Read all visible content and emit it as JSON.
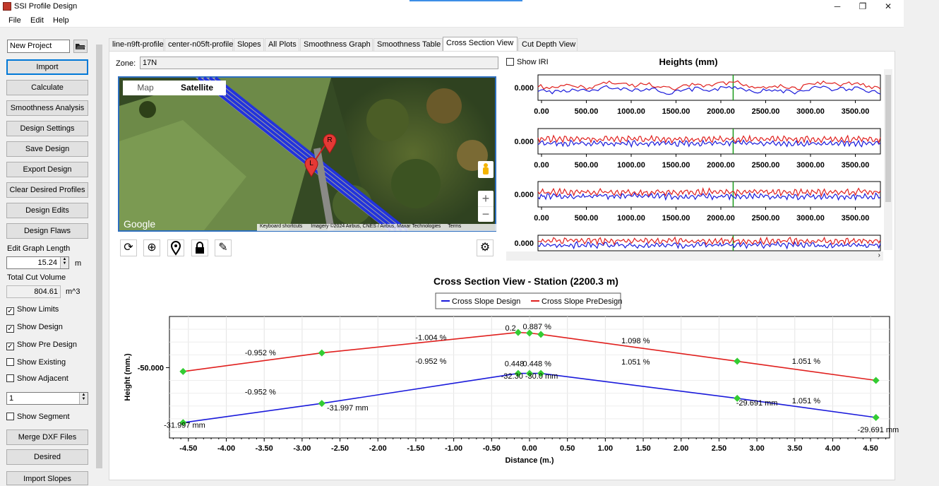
{
  "window": {
    "title": "SSI Profile Design",
    "minimize": "─",
    "maximize": "❐",
    "close": "✕"
  },
  "menu": [
    "File",
    "Edit",
    "Help"
  ],
  "sidebar": {
    "project_name": "New Project",
    "buttons": [
      "Import",
      "Calculate",
      "Smoothness Analysis",
      "Design Settings",
      "Save Design",
      "Export Design",
      "Clear Desired Profiles",
      "Design Edits",
      "Design Flaws"
    ],
    "edit_graph_length_label": "Edit Graph Length",
    "edit_graph_length_value": "15.24",
    "edit_graph_length_unit": "m",
    "total_cut_label": "Total Cut Volume",
    "total_cut_value": "804.61",
    "total_cut_unit": "m^3",
    "checks": [
      {
        "label": "Show Limits",
        "checked": true
      },
      {
        "label": "Show Design",
        "checked": true
      },
      {
        "label": "Show Pre Design",
        "checked": true
      },
      {
        "label": "Show Existing",
        "checked": false
      },
      {
        "label": "Show Adjacent",
        "checked": false
      }
    ],
    "adjacent_value": "1",
    "show_segment_label": "Show Segment",
    "bottom_buttons": [
      "Merge DXF Files",
      "Desired",
      "Import Slopes"
    ]
  },
  "tabs": [
    "line-n9ft-profile",
    "center-n05ft-profile",
    "Slopes",
    "All Plots",
    "Smoothness Graph",
    "Smoothness Table",
    "Cross Section View",
    "Cut Depth View"
  ],
  "active_tab": 6,
  "zone": {
    "label": "Zone:",
    "value": "17N"
  },
  "map": {
    "tab_map": "Map",
    "tab_satellite": "Satellite",
    "logo": "Google",
    "footer": [
      "Keyboard shortcuts",
      "Imagery ©2024 Airbus, CNES / Airbus, Maxar Technologies",
      "Terms"
    ],
    "marker_r": "R",
    "marker_l": "L",
    "zoom_in": "+",
    "zoom_out": "−"
  },
  "heights": {
    "show_iri_label": "Show IRI",
    "title": "Heights (mm)",
    "y_tick": "0.000",
    "x_ticks": [
      "0.00",
      "500.00",
      "1000.00",
      "1500.00",
      "2000.00",
      "2500.00",
      "3000.00",
      "3500.00"
    ]
  },
  "chart_data": {
    "type": "line",
    "title": "Cross Section View - Station (2200.3 m)",
    "xlabel": "Distance (m.)",
    "ylabel": "Height (mm.)",
    "xlim": [
      -4.75,
      4.75
    ],
    "x_ticks": [
      "-4.50",
      "-4.00",
      "-3.50",
      "-3.00",
      "-2.50",
      "-2.00",
      "-1.50",
      "-1.00",
      "-0.50",
      "0.00",
      "0.50",
      "1.00",
      "1.50",
      "2.00",
      "2.50",
      "3.00",
      "3.50",
      "4.00",
      "4.50"
    ],
    "y_tick_label": "-50.000",
    "legend_position": "top-center",
    "colors": {
      "design": "#1a1adb",
      "predesign": "#e0201e",
      "marker": "#33cc33"
    },
    "series": [
      {
        "name": "Cross Slope Design",
        "x": [
          -4.57,
          -2.74,
          -0.15,
          0.0,
          0.15,
          2.74,
          4.57
        ],
        "y": [
          -58.6,
          -55.6,
          -50.9,
          -50.9,
          -50.9,
          -54.8,
          -57.8
        ]
      },
      {
        "name": "Cross Slope PreDesign",
        "x": [
          -4.57,
          -2.74,
          -0.15,
          0.0,
          0.15,
          2.74,
          4.57
        ],
        "y": [
          -50.6,
          -47.7,
          -44.5,
          -44.6,
          -44.8,
          -49.0,
          -52.0
        ]
      }
    ],
    "annotations": [
      {
        "text": "-0.952 %",
        "x": -3.55,
        "y": -48.1
      },
      {
        "text": "-1.004 %",
        "x": -1.3,
        "y": -45.7
      },
      {
        "text": "0.2",
        "x": -0.25,
        "y": -44.2
      },
      {
        "text": "0.887 %",
        "x": 0.1,
        "y": -44.0
      },
      {
        "text": "1.098 %",
        "x": 1.4,
        "y": -46.2
      },
      {
        "text": "1.051 %",
        "x": 3.65,
        "y": -49.4
      },
      {
        "text": "-0.952 %",
        "x": -3.55,
        "y": -54.2
      },
      {
        "text": "-0.952 %",
        "x": -1.3,
        "y": -49.4
      },
      {
        "text": "0.448",
        "x": -0.2,
        "y": -49.8
      },
      {
        "text": "0.448 %",
        "x": 0.1,
        "y": -49.8
      },
      {
        "text": "1.051 %",
        "x": 1.4,
        "y": -49.5
      },
      {
        "text": "1.051 %",
        "x": 3.65,
        "y": -55.6
      },
      {
        "text": "-32.30 -30.0 mm",
        "x": 0.0,
        "y": -51.7
      },
      {
        "text": "-31.997 mm",
        "x": -2.4,
        "y": -56.7
      },
      {
        "text": "-31.997 mm",
        "x": -4.55,
        "y": -59.4
      },
      {
        "text": "-29.691 mm",
        "x": 3.0,
        "y": -55.9
      },
      {
        "text": "-29.691 mm",
        "x": 4.6,
        "y": -60.1
      }
    ]
  }
}
